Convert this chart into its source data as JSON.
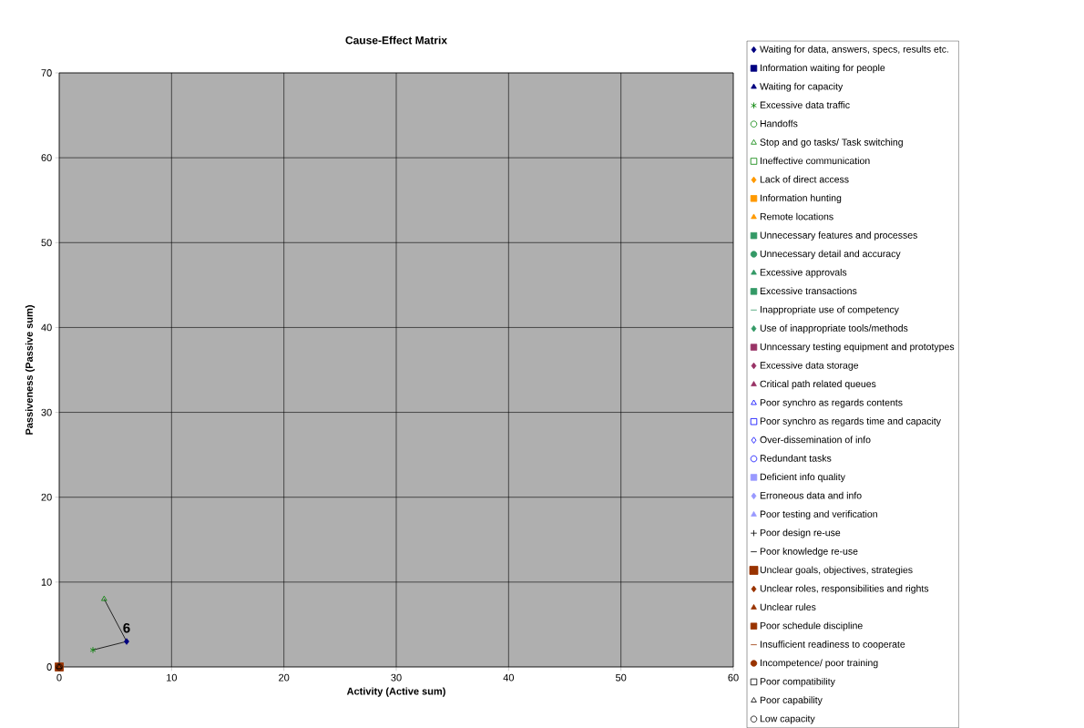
{
  "chart_data": {
    "type": "scatter",
    "title": "Cause-Effect Matrix",
    "xlabel": "Activity (Active sum)",
    "ylabel": "Passiveness (Passive sum)",
    "xlim": [
      0,
      60
    ],
    "xticks": [
      0,
      10,
      20,
      30,
      40,
      50,
      60
    ],
    "ylim": [
      0,
      70
    ],
    "yticks": [
      0,
      10,
      20,
      30,
      40,
      50,
      60,
      70
    ],
    "grid": true,
    "legend": "right",
    "annotations": [
      {
        "text": "6",
        "x": 6,
        "y": 3
      }
    ],
    "series": [
      {
        "type": "line",
        "color": "#000000",
        "marker": "none",
        "x": [
          4,
          6,
          3
        ],
        "values": [
          8,
          3,
          2
        ]
      },
      {
        "name": "Waiting for data, answers, specs, results etc.",
        "color": "#000080",
        "marker": "diamond",
        "x": [
          6
        ],
        "values": [
          3
        ]
      },
      {
        "name": "Information waiting for people",
        "color": "#000080",
        "marker": "square",
        "values": [
          null
        ]
      },
      {
        "name": "Waiting for capacity",
        "color": "#000080",
        "marker": "triangle",
        "values": [
          null
        ]
      },
      {
        "name": "Excessive data traffic",
        "color": "#008000",
        "marker": "cross",
        "x": [
          3
        ],
        "values": [
          2
        ]
      },
      {
        "name": "Handoffs",
        "color": "#008000",
        "marker": "circle-open",
        "values": [
          null
        ]
      },
      {
        "name": "Stop and go tasks/ Task switching",
        "color": "#008000",
        "marker": "triangle-open",
        "x": [
          4
        ],
        "values": [
          8
        ]
      },
      {
        "name": "Ineffective communication",
        "color": "#008000",
        "marker": "square-open",
        "values": [
          null
        ]
      },
      {
        "name": "Lack of direct access",
        "color": "#ff9900",
        "marker": "diamond",
        "values": [
          null
        ]
      },
      {
        "name": "Information hunting",
        "color": "#ff9900",
        "marker": "square",
        "values": [
          null
        ]
      },
      {
        "name": "Remote locations",
        "color": "#ff9900",
        "marker": "triangle",
        "values": [
          null
        ]
      },
      {
        "name": "Unnecessary features and processes",
        "color": "#339966",
        "marker": "square",
        "values": [
          null
        ]
      },
      {
        "name": "Unnecessary detail and accuracy",
        "color": "#339966",
        "marker": "circle",
        "values": [
          null
        ]
      },
      {
        "name": "Excessive approvals",
        "color": "#339966",
        "marker": "triangle",
        "values": [
          null
        ]
      },
      {
        "name": "Excessive transactions",
        "color": "#339966",
        "marker": "square",
        "values": [
          null
        ]
      },
      {
        "name": "Inappropriate use of competency",
        "color": "#339966",
        "marker": "dash",
        "values": [
          null
        ]
      },
      {
        "name": "Use of inappropriate tools/methods",
        "color": "#339966",
        "marker": "diamond",
        "values": [
          null
        ]
      },
      {
        "name": "Unncessary testing equipment and prototypes",
        "color": "#993366",
        "marker": "square",
        "values": [
          null
        ]
      },
      {
        "name": "Excessive data storage",
        "color": "#993366",
        "marker": "diamond",
        "values": [
          null
        ]
      },
      {
        "name": "Critical path related queues",
        "color": "#993366",
        "marker": "triangle",
        "values": [
          null
        ]
      },
      {
        "name": "Poor synchro as regards contents",
        "color": "#0000ff",
        "marker": "triangle-open",
        "values": [
          null
        ]
      },
      {
        "name": "Poor synchro as regards time and capacity",
        "color": "#0000ff",
        "marker": "square-open",
        "values": [
          null
        ]
      },
      {
        "name": "Over-dissemination of info",
        "color": "#0000ff",
        "marker": "diamond-open",
        "values": [
          null
        ]
      },
      {
        "name": "Redundant tasks",
        "color": "#0000ff",
        "marker": "circle-open",
        "values": [
          null
        ]
      },
      {
        "name": "Deficient info quality",
        "color": "#9999ff",
        "marker": "square",
        "values": [
          null
        ]
      },
      {
        "name": "Erroneous data and info",
        "color": "#9999ff",
        "marker": "diamond",
        "values": [
          null
        ]
      },
      {
        "name": "Poor testing and verification",
        "color": "#9999ff",
        "marker": "triangle",
        "values": [
          null
        ]
      },
      {
        "name": "Poor design re-use",
        "color": "#000000",
        "marker": "plus",
        "values": [
          null
        ]
      },
      {
        "name": "Poor knowledge re-use",
        "color": "#000000",
        "marker": "dash",
        "values": [
          null
        ]
      },
      {
        "name": "Unclear goals, objectives, strategies",
        "color": "#993300",
        "marker": "square",
        "x": [
          0
        ],
        "values": [
          0
        ]
      },
      {
        "name": "Unclear roles, responsibilities and rights",
        "color": "#993300",
        "marker": "diamond",
        "values": [
          null
        ]
      },
      {
        "name": "Unclear rules",
        "color": "#993300",
        "marker": "triangle",
        "values": [
          null
        ]
      },
      {
        "name": "Poor schedule discipline",
        "color": "#993300",
        "marker": "square",
        "values": [
          null
        ]
      },
      {
        "name": "Insufficient readiness to cooperate",
        "color": "#993300",
        "marker": "dash",
        "values": [
          null
        ]
      },
      {
        "name": "Incompetence/ poor training",
        "color": "#993300",
        "marker": "circle",
        "values": [
          null
        ]
      },
      {
        "name": "Poor compatibility",
        "color": "#000000",
        "marker": "square-open",
        "values": [
          null
        ]
      },
      {
        "name": "Poor capability",
        "color": "#000000",
        "marker": "triangle-open",
        "x": [
          0
        ],
        "values": [
          0
        ]
      },
      {
        "name": "Low capacity",
        "color": "#000000",
        "marker": "circle-open",
        "x": [
          0
        ],
        "values": [
          0
        ]
      }
    ]
  }
}
